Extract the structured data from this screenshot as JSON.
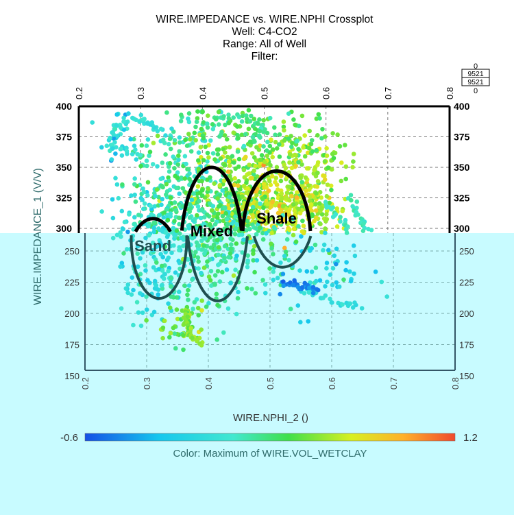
{
  "chart_data": {
    "type": "scatter",
    "title": "WIRE.IMPEDANCE vs. WIRE.NPHI Crossplot",
    "subtitle_lines": [
      "Well: C4-CO2",
      "Range: All of Well",
      "Filter:"
    ],
    "xlabel": "WIRE.NPHI_2 ()",
    "ylabel": "WIRE.IMPEDANCE_1 (V/V)",
    "xlim": [
      0.2,
      0.8
    ],
    "ylim": [
      150,
      400
    ],
    "x_ticks": [
      "0.2",
      "0.3",
      "0.4",
      "0.5",
      "0.6",
      "0.7",
      "0.8"
    ],
    "y_ticks": [
      "150",
      "175",
      "200",
      "225",
      "250",
      "275",
      "300",
      "325",
      "350",
      "375",
      "400"
    ],
    "grid": true,
    "colorbar": {
      "label": "Color: Maximum of WIRE.VOL_WETCLAY",
      "min_label": "-0.6",
      "max_label": "1.2",
      "min": -0.6,
      "max": 1.2
    },
    "legend_box": {
      "top": "0",
      "line1": "9521",
      "line2": "9521",
      "bottom": "0"
    },
    "zones": [
      {
        "name": "Sand",
        "cx": 0.32,
        "cy": 260,
        "rx": 0.045,
        "ry": 48
      },
      {
        "name": "Mixed",
        "cx": 0.415,
        "cy": 280,
        "rx": 0.05,
        "ry": 70
      },
      {
        "name": "Shale",
        "cx": 0.52,
        "cy": 292,
        "rx": 0.055,
        "ry": 55
      }
    ],
    "clusters": [
      {
        "x": 0.36,
        "y": 345,
        "sx": 0.05,
        "sy": 25,
        "c": 0.15,
        "n": 220
      },
      {
        "x": 0.45,
        "y": 330,
        "sx": 0.05,
        "sy": 25,
        "c": 0.45,
        "n": 280
      },
      {
        "x": 0.52,
        "y": 320,
        "sx": 0.05,
        "sy": 20,
        "c": 0.7,
        "n": 300
      },
      {
        "x": 0.57,
        "y": 350,
        "sx": 0.03,
        "sy": 15,
        "c": 0.55,
        "n": 120
      },
      {
        "x": 0.5,
        "y": 375,
        "sx": 0.06,
        "sy": 12,
        "c": 0.35,
        "n": 100
      },
      {
        "x": 0.32,
        "y": 250,
        "sx": 0.035,
        "sy": 25,
        "c": 0.0,
        "n": 200
      },
      {
        "x": 0.4,
        "y": 255,
        "sx": 0.04,
        "sy": 28,
        "c": 0.2,
        "n": 200
      },
      {
        "x": 0.46,
        "y": 265,
        "sx": 0.05,
        "sy": 22,
        "c": 0.25,
        "n": 150
      },
      {
        "x": 0.36,
        "y": 190,
        "sx": 0.02,
        "sy": 12,
        "c": 0.45,
        "n": 50
      },
      {
        "x": 0.57,
        "y": 235,
        "sx": 0.05,
        "sy": 15,
        "c": -0.1,
        "n": 60
      },
      {
        "x": 0.56,
        "y": 290,
        "sx": 0.03,
        "sy": 15,
        "c": 0.6,
        "n": 60
      },
      {
        "x": 0.25,
        "y": 375,
        "sx": 0.02,
        "sy": 10,
        "c": -0.2,
        "n": 20
      }
    ],
    "tracks": [
      {
        "pts": [
          [
            0.33,
            380
          ],
          [
            0.3,
            390
          ],
          [
            0.26,
            385
          ],
          [
            0.25,
            365
          ],
          [
            0.3,
            360
          ]
        ],
        "c": 0.05
      },
      {
        "pts": [
          [
            0.4,
            385
          ],
          [
            0.45,
            392
          ],
          [
            0.5,
            385
          ],
          [
            0.48,
            370
          ]
        ],
        "c": 0.25
      },
      {
        "pts": [
          [
            0.6,
            320
          ],
          [
            0.63,
            305
          ],
          [
            0.65,
            280
          ],
          [
            0.67,
            265
          ]
        ],
        "c": 0.15
      },
      {
        "pts": [
          [
            0.55,
            220
          ],
          [
            0.6,
            210
          ],
          [
            0.65,
            205
          ]
        ],
        "c": 0.0
      },
      {
        "pts": [
          [
            0.36,
            200
          ],
          [
            0.37,
            185
          ],
          [
            0.39,
            175
          ]
        ],
        "c": 0.55
      },
      {
        "pts": [
          [
            0.52,
            225
          ],
          [
            0.55,
            222
          ],
          [
            0.58,
            218
          ]
        ],
        "c": -0.45
      }
    ]
  }
}
